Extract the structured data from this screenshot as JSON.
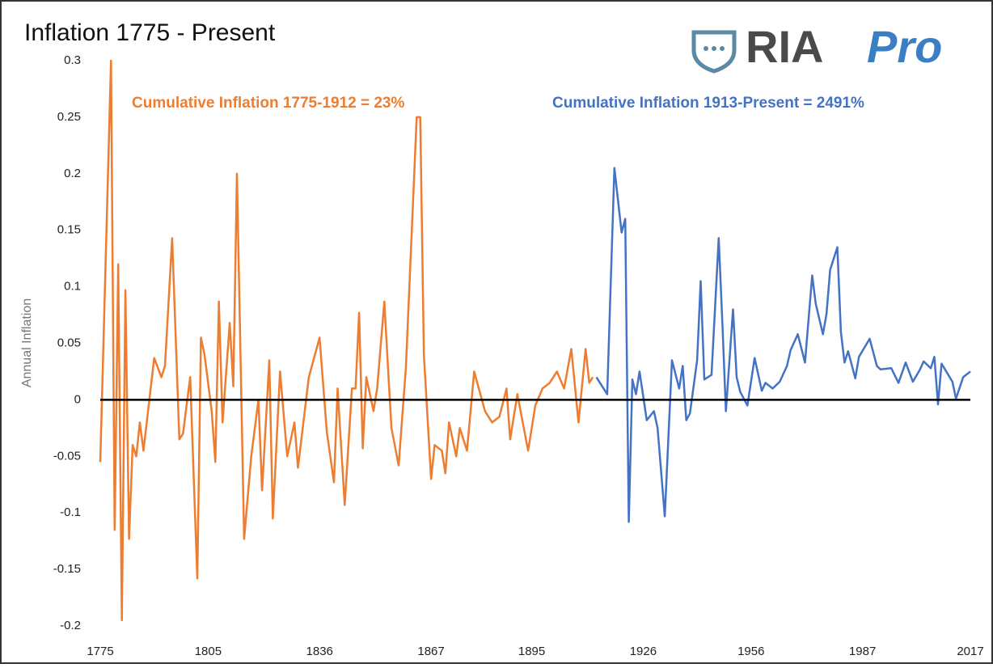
{
  "chart_data": {
    "type": "line",
    "title": "Inflation 1775 - Present",
    "logo": {
      "text": "RIA",
      "accent": "Pro"
    },
    "y_label": "Annual Inflation",
    "annotations": [
      "Cumulative Inflation 1775-1912 = 23%",
      "Cumulative Inflation 1913-Present = 2491%"
    ],
    "xlim": [
      1775,
      2017
    ],
    "xticks": [
      1775,
      1805,
      1836,
      1867,
      1895,
      1926,
      1956,
      1987,
      2017
    ],
    "ylim": [
      -0.2,
      0.3
    ],
    "yticks": [
      -0.2,
      -0.15,
      -0.1,
      -0.05,
      0,
      0.05,
      0.1,
      0.15,
      0.2,
      0.25,
      0.3
    ],
    "zero_line": true,
    "series": [
      {
        "color": "#ed7d31",
        "x": [
          1775,
          1778,
          1779,
          1780,
          1781,
          1782,
          1783,
          1784,
          1785,
          1786,
          1787,
          1790,
          1792,
          1793,
          1795,
          1797,
          1798,
          1800,
          1802,
          1803,
          1804,
          1806,
          1807,
          1808,
          1809,
          1811,
          1812,
          1813,
          1815,
          1817,
          1819,
          1820,
          1822,
          1823,
          1825,
          1827,
          1829,
          1830,
          1833,
          1836,
          1838,
          1840,
          1841,
          1843,
          1845,
          1846,
          1847,
          1848,
          1849,
          1851,
          1852,
          1854,
          1855,
          1856,
          1858,
          1860,
          1863,
          1864,
          1865,
          1867,
          1868,
          1870,
          1871,
          1872,
          1874,
          1875,
          1877,
          1879,
          1882,
          1884,
          1886,
          1888,
          1889,
          1891,
          1894,
          1896,
          1898,
          1900,
          1902,
          1904,
          1906,
          1908,
          1910,
          1911,
          1912
        ],
        "values": [
          -0.055,
          0.3,
          -0.115,
          0.12,
          -0.195,
          0.097,
          -0.123,
          -0.04,
          -0.05,
          -0.02,
          -0.045,
          0.037,
          0.02,
          0.03,
          0.143,
          -0.035,
          -0.03,
          0.02,
          -0.158,
          0.055,
          0.04,
          -0.01,
          -0.055,
          0.087,
          -0.02,
          0.068,
          0.012,
          0.2,
          -0.123,
          -0.05,
          0,
          -0.08,
          0.035,
          -0.105,
          0.025,
          -0.05,
          -0.02,
          -0.06,
          0.02,
          0.055,
          -0.028,
          -0.073,
          0.01,
          -0.093,
          0.01,
          0.01,
          0.077,
          -0.043,
          0.02,
          -0.01,
          0.01,
          0.087,
          0.03,
          -0.025,
          -0.058,
          0.028,
          0.25,
          0.25,
          0.04,
          -0.07,
          -0.04,
          -0.045,
          -0.065,
          -0.02,
          -0.05,
          -0.025,
          -0.045,
          0.025,
          -0.01,
          -0.02,
          -0.015,
          0.01,
          -0.035,
          0.005,
          -0.045,
          -0.005,
          0.01,
          0.015,
          0.025,
          0.01,
          0.045,
          -0.02,
          0.045,
          0.015,
          0.02
        ]
      },
      {
        "color": "#4472c4",
        "x": [
          1913,
          1914,
          1916,
          1918,
          1920,
          1921,
          1922,
          1923,
          1924,
          1925,
          1927,
          1929,
          1930,
          1932,
          1934,
          1936,
          1937,
          1938,
          1939,
          1941,
          1942,
          1943,
          1945,
          1947,
          1948,
          1949,
          1951,
          1952,
          1953,
          1955,
          1957,
          1959,
          1960,
          1962,
          1964,
          1966,
          1967,
          1969,
          1971,
          1973,
          1974,
          1976,
          1977,
          1978,
          1980,
          1981,
          1982,
          1983,
          1985,
          1986,
          1989,
          1991,
          1992,
          1995,
          1997,
          1999,
          2001,
          2003,
          2004,
          2006,
          2007,
          2008,
          2009,
          2012,
          2013,
          2015,
          2017
        ],
        "values": [
          0.02,
          0.015,
          0.005,
          0.205,
          0.148,
          0.16,
          -0.108,
          0.018,
          0.005,
          0.025,
          -0.018,
          -0.01,
          -0.025,
          -0.103,
          0.035,
          0.01,
          0.03,
          -0.018,
          -0.012,
          0.035,
          0.105,
          0.018,
          0.022,
          0.143,
          0.07,
          -0.01,
          0.08,
          0.02,
          0.007,
          -0.005,
          0.037,
          0.008,
          0.015,
          0.01,
          0.016,
          0.03,
          0.044,
          0.058,
          0.033,
          0.11,
          0.085,
          0.058,
          0.076,
          0.115,
          0.135,
          0.06,
          0.033,
          0.043,
          0.019,
          0.038,
          0.054,
          0.03,
          0.027,
          0.028,
          0.015,
          0.033,
          0.016,
          0.027,
          0.034,
          0.028,
          0.038,
          -0.004,
          0.032,
          0.016,
          0.001,
          0.02,
          0.025
        ]
      }
    ]
  }
}
